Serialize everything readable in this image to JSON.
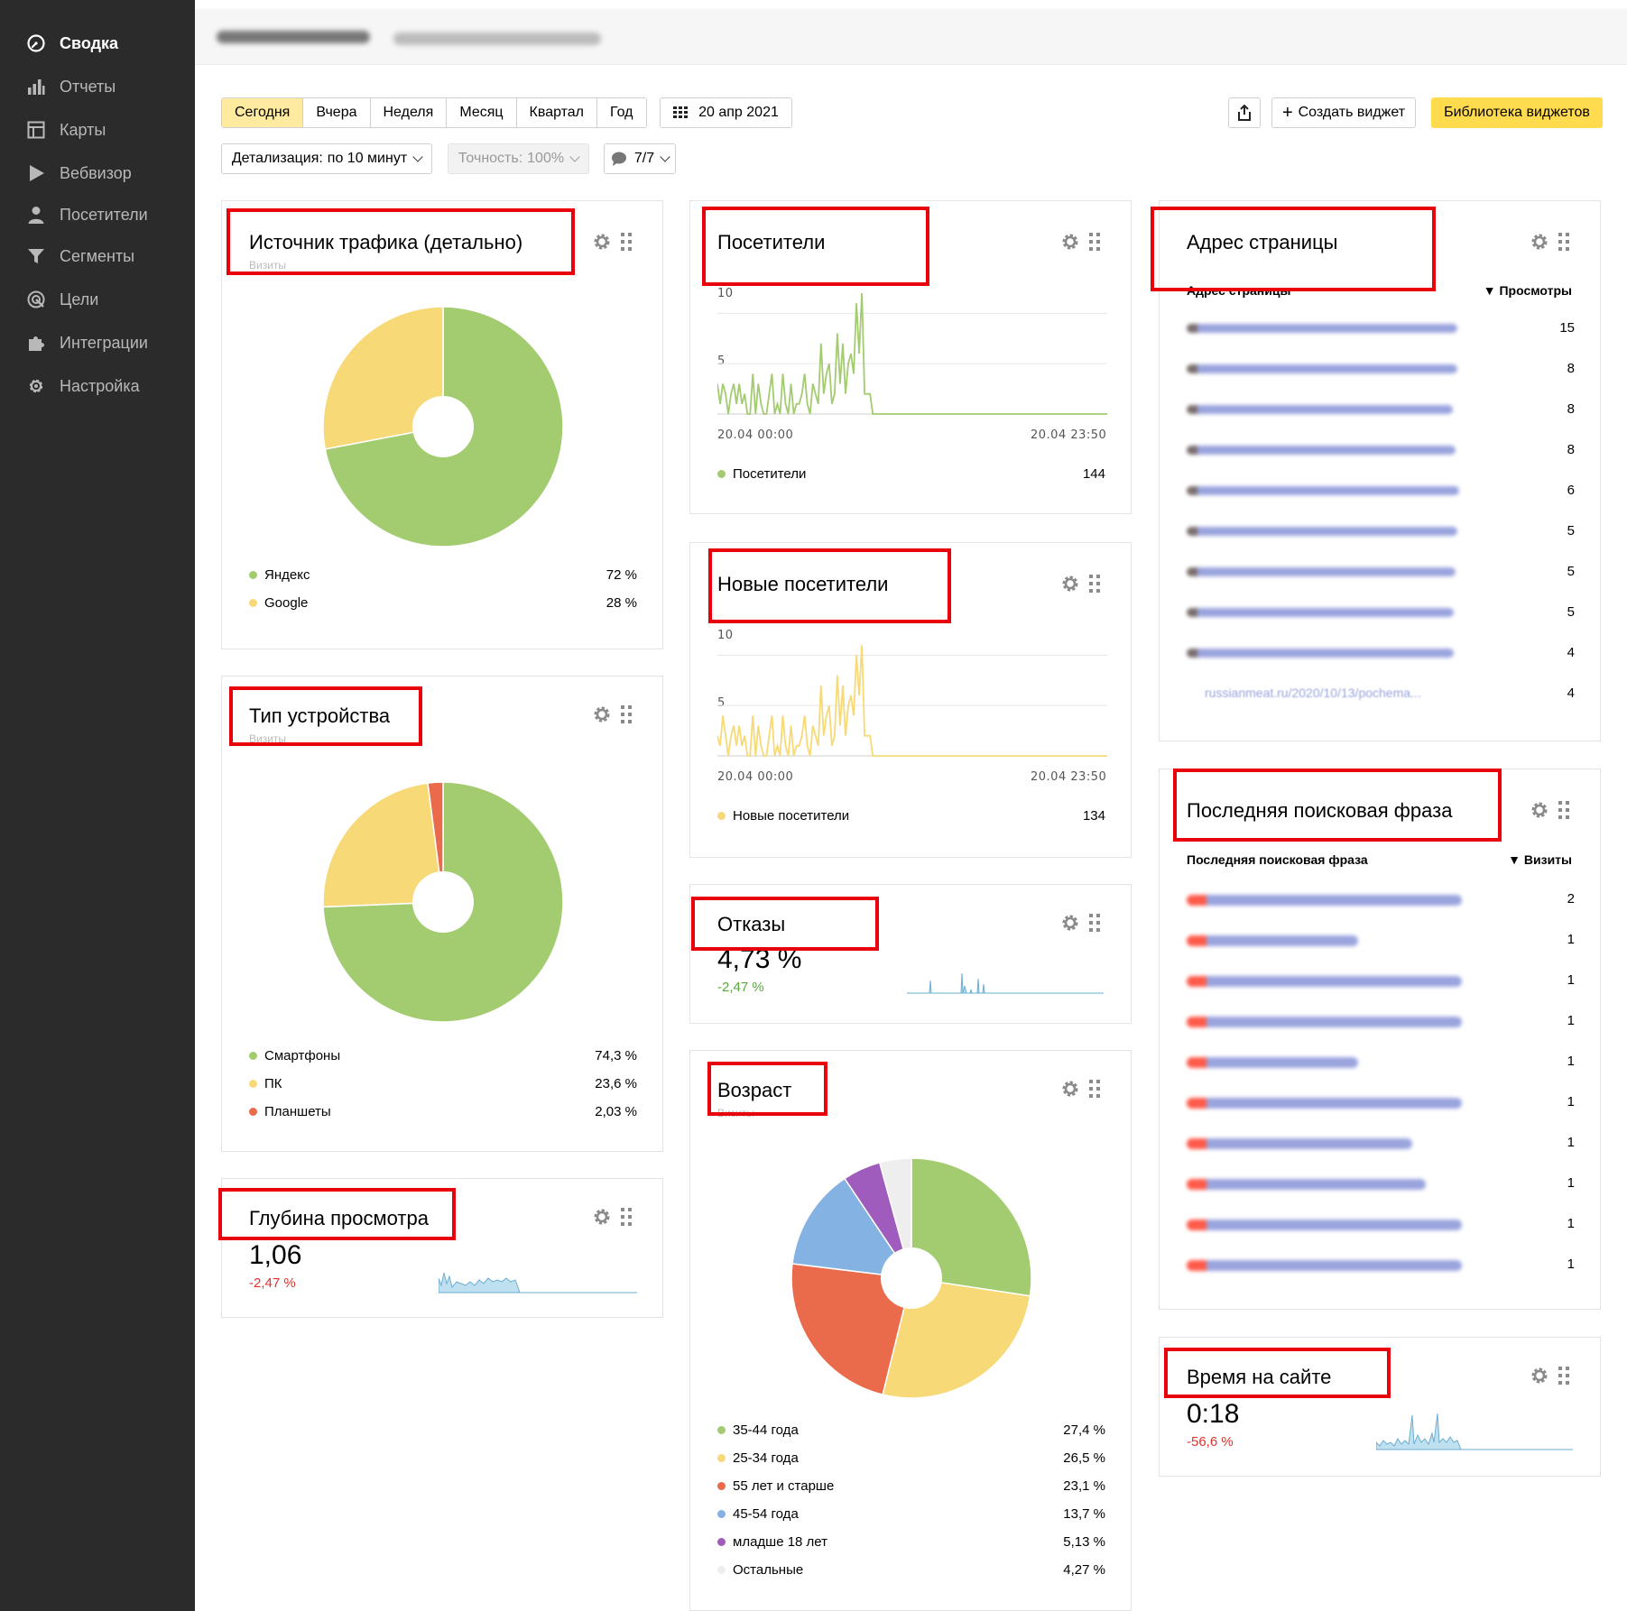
{
  "sidebar": {
    "items": [
      {
        "label": "Сводка",
        "icon": "dashboard-icon",
        "active": true
      },
      {
        "label": "Отчеты",
        "icon": "bar-chart-icon"
      },
      {
        "label": "Карты",
        "icon": "map-layout-icon"
      },
      {
        "label": "Вебвизор",
        "icon": "play-icon"
      },
      {
        "label": "Посетители",
        "icon": "user-icon"
      },
      {
        "label": "Сегменты",
        "icon": "filter-icon"
      },
      {
        "label": "Цели",
        "icon": "target-icon"
      },
      {
        "label": "Интеграции",
        "icon": "puzzle-icon"
      },
      {
        "label": "Настройка",
        "icon": "gear-icon"
      }
    ]
  },
  "toolbar": {
    "periods": [
      "Сегодня",
      "Вчера",
      "Неделя",
      "Месяц",
      "Квартал",
      "Год"
    ],
    "date": "20 апр 2021",
    "create_widget": "Создать виджет",
    "widget_library": "Библиотека виджетов",
    "detail_label": "Детализация:",
    "detail_value": "по 10 минут",
    "accuracy_label": "Точность:",
    "accuracy_value": "100%",
    "segments_value": "7/7"
  },
  "colors": {
    "green": "#a3cb6f",
    "yellow": "#f8d977",
    "red": "#e96b4c",
    "blue": "#84b2e3",
    "purple": "#a05cbc",
    "light": "#eeeeee",
    "highlight": "#e8000a"
  },
  "widgets": {
    "traffic": {
      "title": "Источник трафика (детально)",
      "subtitle": "Визиты",
      "legend": [
        {
          "label": "Яндекс",
          "value": "72 %",
          "color": "#a3cb6f"
        },
        {
          "label": "Google",
          "value": "28 %",
          "color": "#f8d977"
        }
      ]
    },
    "device": {
      "title": "Тип устройства",
      "subtitle": "Визиты",
      "legend": [
        {
          "label": "Смартфоны",
          "value": "74,3 %",
          "color": "#a3cb6f"
        },
        {
          "label": "ПК",
          "value": "23,6 %",
          "color": "#f8d977"
        },
        {
          "label": "Планшеты",
          "value": "2,03 %",
          "color": "#e96b4c"
        }
      ]
    },
    "depth": {
      "title": "Глубина просмотра",
      "value": "1,06",
      "delta": "-2,47 %"
    },
    "visitors": {
      "title": "Посетители",
      "y_top": "10",
      "y_mid": "5",
      "x_start": "20.04 00:00",
      "x_end": "20.04 23:50",
      "legend_label": "Посетители",
      "legend_value": "144"
    },
    "new_visitors": {
      "title": "Новые посетители",
      "y_top": "10",
      "y_mid": "5",
      "x_start": "20.04 00:00",
      "x_end": "20.04 23:50",
      "legend_label": "Новые посетители",
      "legend_value": "134"
    },
    "bounces": {
      "title": "Отказы",
      "value": "4,73 %",
      "delta": "-2,47 %"
    },
    "age": {
      "title": "Возраст",
      "subtitle": "Визиты",
      "legend": [
        {
          "label": "35-44 года",
          "value": "27,4 %",
          "color": "#a3cb6f"
        },
        {
          "label": "25-34 года",
          "value": "26,5 %",
          "color": "#f8d977"
        },
        {
          "label": "55 лет и старше",
          "value": "23,1 %",
          "color": "#e96b4c"
        },
        {
          "label": "45-54 года",
          "value": "13,7 %",
          "color": "#84b2e3"
        },
        {
          "label": "младше 18 лет",
          "value": "5,13 %",
          "color": "#a05cbc"
        },
        {
          "label": "Остальные",
          "value": "4,27 %",
          "color": "#eeeeee"
        }
      ]
    },
    "pages": {
      "title": "Адрес страницы",
      "col_left": "Адрес страницы",
      "col_right": "▼ Просмотры",
      "rows": [
        "15",
        "8",
        "8",
        "8",
        "6",
        "5",
        "5",
        "5",
        "4",
        "4"
      ],
      "last_row_text": "russianmeat.ru/2020/10/13/pochema..."
    },
    "search": {
      "title": "Последняя поисковая фраза",
      "col_left": "Последняя поисковая фраза",
      "col_right": "▼ Визиты",
      "rows": [
        "2",
        "1",
        "1",
        "1",
        "1",
        "1",
        "1",
        "1",
        "1",
        "1"
      ]
    },
    "time": {
      "title": "Время на сайте",
      "value": "0:18",
      "delta": "-56,6 %"
    }
  },
  "chart_data": [
    {
      "type": "pie",
      "title": "Источник трафика (детально)",
      "categories": [
        "Яндекс",
        "Google"
      ],
      "values": [
        72,
        28
      ]
    },
    {
      "type": "pie",
      "title": "Тип устройства",
      "categories": [
        "Смартфоны",
        "ПК",
        "Планшеты"
      ],
      "values": [
        74.3,
        23.6,
        2.03
      ]
    },
    {
      "type": "pie",
      "title": "Возраст",
      "categories": [
        "35-44 года",
        "25-34 года",
        "55 лет и старше",
        "45-54 года",
        "младше 18 лет",
        "Остальные"
      ],
      "values": [
        27.4,
        26.5,
        23.1,
        13.7,
        5.13,
        4.27
      ]
    },
    {
      "type": "line",
      "title": "Посетители",
      "ylim": [
        0,
        12
      ],
      "values": [
        3,
        1,
        3,
        2,
        0,
        2,
        3,
        1,
        3,
        1,
        2,
        0,
        0,
        4,
        0,
        3,
        1,
        0,
        0,
        2,
        4,
        0,
        1,
        0,
        4,
        1,
        0,
        3,
        0,
        1,
        1,
        2,
        4,
        1,
        0,
        3,
        2,
        1,
        7,
        2,
        4,
        5,
        1,
        2,
        8,
        3,
        7,
        2,
        5,
        6,
        4,
        11,
        6,
        12,
        2,
        2,
        2,
        0,
        0,
        0,
        0,
        0,
        0,
        0,
        0,
        0,
        0,
        0,
        0,
        0,
        0,
        0,
        0,
        0,
        0,
        0,
        0,
        0,
        0,
        0,
        0,
        0,
        0,
        0,
        0,
        0,
        0,
        0,
        0,
        0,
        0,
        0,
        0,
        0,
        0,
        0,
        0,
        0,
        0,
        0,
        0,
        0,
        0,
        0,
        0,
        0,
        0,
        0,
        0,
        0,
        0,
        0,
        0,
        0,
        0,
        0,
        0,
        0,
        0,
        0,
        0,
        0,
        0,
        0,
        0,
        0,
        0,
        0,
        0,
        0,
        0,
        0,
        0,
        0,
        0,
        0,
        0,
        0,
        0,
        0,
        0,
        0,
        0,
        0
      ]
    },
    {
      "type": "line",
      "title": "Новые посетители",
      "ylim": [
        0,
        12
      ],
      "values": [
        2,
        1,
        4,
        2,
        0,
        2,
        3,
        1,
        3,
        1,
        2,
        0,
        0,
        4,
        0,
        3,
        1,
        0,
        0,
        2,
        4,
        0,
        1,
        0,
        4,
        1,
        0,
        3,
        0,
        1,
        1,
        2,
        4,
        1,
        0,
        3,
        2,
        1,
        7,
        2,
        4,
        5,
        1,
        2,
        8,
        3,
        7,
        2,
        5,
        6,
        4,
        10,
        6,
        11,
        2,
        2,
        2,
        0,
        0,
        0,
        0,
        0,
        0,
        0,
        0,
        0,
        0,
        0,
        0,
        0,
        0,
        0,
        0,
        0,
        0,
        0,
        0,
        0,
        0,
        0,
        0,
        0,
        0,
        0,
        0,
        0,
        0,
        0,
        0,
        0,
        0,
        0,
        0,
        0,
        0,
        0,
        0,
        0,
        0,
        0,
        0,
        0,
        0,
        0,
        0,
        0,
        0,
        0,
        0,
        0,
        0,
        0,
        0,
        0,
        0,
        0,
        0,
        0,
        0,
        0,
        0,
        0,
        0,
        0,
        0,
        0,
        0,
        0,
        0,
        0,
        0,
        0,
        0,
        0,
        0,
        0,
        0,
        0,
        0,
        0,
        0,
        0,
        0,
        0
      ]
    }
  ]
}
